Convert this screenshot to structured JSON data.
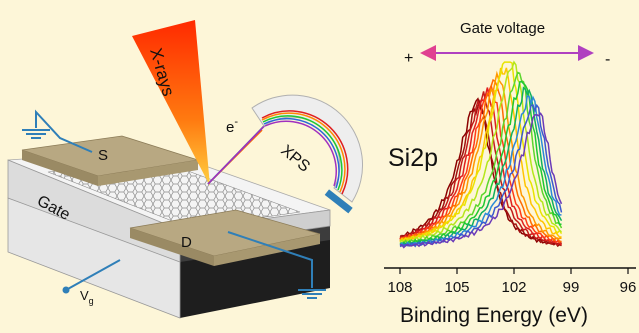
{
  "labels": {
    "xrays": "X-rays",
    "electron": "e",
    "electron_sup": "-",
    "xps": "XPS",
    "source": "S",
    "drain": "D",
    "gate": "Gate",
    "vg_main": "V",
    "vg_sub": "g",
    "si2p": "Si2p",
    "gate_voltage": "Gate voltage",
    "plus": "+",
    "minus": "-"
  },
  "chart_data": {
    "type": "line",
    "title": "",
    "xlabel": "Binding Energy (eV)",
    "ylabel": "",
    "x_ticks": [
      "108",
      "105",
      "102",
      "99",
      "96"
    ],
    "x_tick_values": [
      108,
      105,
      102,
      99,
      96
    ],
    "xlim": [
      108,
      96
    ],
    "x_reversed": true,
    "ylim": [
      0,
      1
    ],
    "series_colors": [
      "#8b0000",
      "#a01010",
      "#c21b1b",
      "#e02020",
      "#ff3a1a",
      "#ff6a00",
      "#ff9800",
      "#ffc400",
      "#e8e400",
      "#b4e61a",
      "#5cd62c",
      "#1ec832",
      "#10b060",
      "#2a8ad8",
      "#3a5ad0",
      "#6a3ab8"
    ],
    "series_peaks": [
      103.9,
      103.8,
      103.6,
      103.4,
      103.2,
      103.0,
      102.8,
      102.5,
      102.3,
      102.0,
      101.7,
      101.5,
      101.3,
      101.1,
      100.9,
      100.7
    ],
    "series_heights": [
      0.76,
      0.74,
      0.78,
      0.8,
      0.82,
      0.86,
      0.88,
      0.92,
      1.0,
      0.95,
      0.9,
      0.86,
      0.82,
      0.78,
      0.74,
      0.7
    ]
  },
  "colors": {
    "background": "#fdf6d8",
    "electrode": "#b8a882",
    "wire": "#2f7fb8",
    "arrow": "#a030b0"
  }
}
